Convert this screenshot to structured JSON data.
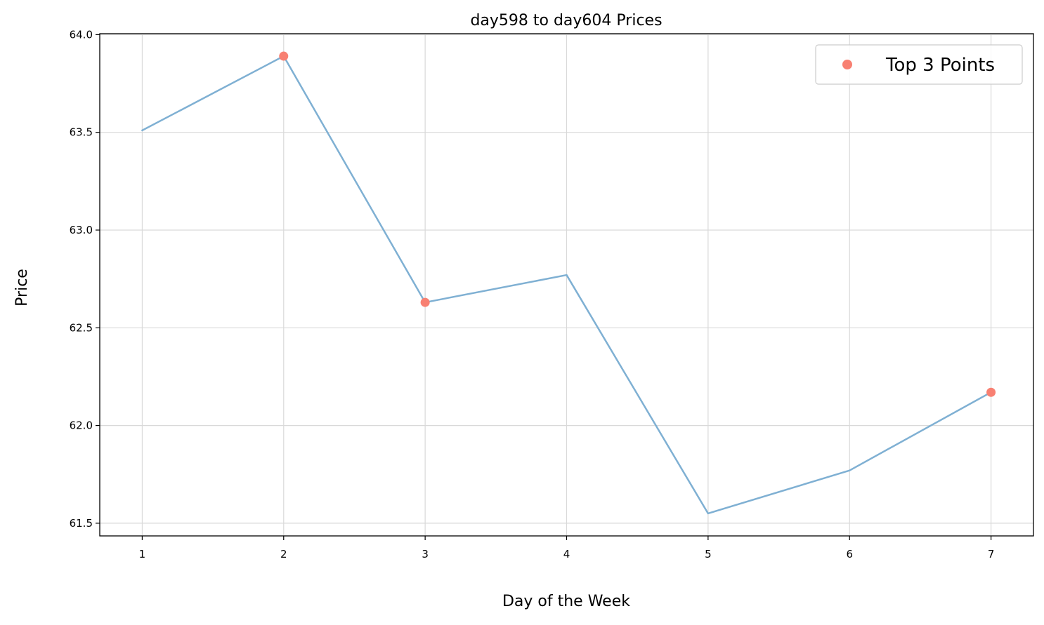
{
  "chart_data": {
    "type": "line",
    "title": "day598 to day604 Prices",
    "xlabel": "Day of the Week",
    "ylabel": "Price",
    "x": [
      1,
      2,
      3,
      4,
      5,
      6,
      7
    ],
    "xticks": [
      "1",
      "2",
      "3",
      "4",
      "5",
      "6",
      "7"
    ],
    "xlim": [
      0.7,
      7.3
    ],
    "yticks": [
      "61.5",
      "62.0",
      "62.5",
      "63.0",
      "63.5",
      "64.0"
    ],
    "ylim": [
      61.435,
      64.005
    ],
    "grid": true,
    "series": [
      {
        "values": [
          63.51,
          63.89,
          62.63,
          62.77,
          61.55,
          61.77,
          62.17
        ],
        "color": "#7fb0d3",
        "style": "line"
      },
      {
        "name": "Top 3 Points",
        "x": [
          2,
          3,
          7
        ],
        "values": [
          63.89,
          62.63,
          62.17
        ],
        "color": "#f88072",
        "style": "scatter"
      }
    ],
    "legend": {
      "position": "top-right",
      "entries": [
        "Top 3 Points"
      ]
    }
  }
}
